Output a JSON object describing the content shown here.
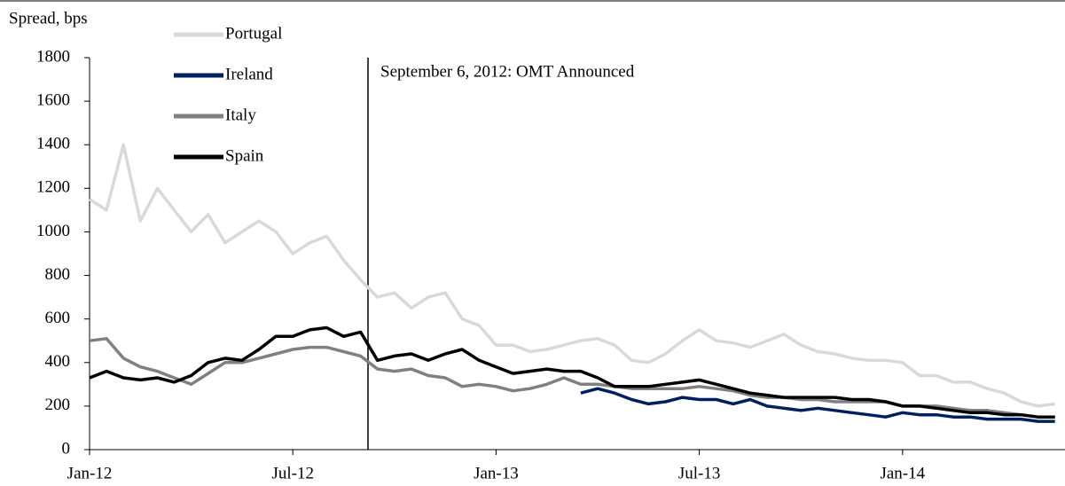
{
  "chart_data": {
    "type": "line",
    "y_axis_label": "Spread, bps",
    "annotation": "September 6, 2012: OMT Announced",
    "categories": [
      "Jan-12",
      null,
      null,
      null,
      null,
      null,
      null,
      null,
      null,
      null,
      null,
      null,
      "Jul-12",
      null,
      null,
      null,
      null,
      null,
      null,
      null,
      null,
      null,
      null,
      null,
      "Jan-13",
      null,
      null,
      null,
      null,
      null,
      null,
      null,
      null,
      null,
      null,
      null,
      "Jul-13",
      null,
      null,
      null,
      null,
      null,
      null,
      null,
      null,
      null,
      null,
      null,
      "Jan-14",
      null,
      null,
      null,
      null,
      null,
      null,
      null,
      null,
      null
    ],
    "series": [
      {
        "name": "Portugal",
        "color": "#d9d9d9",
        "values": [
          1150,
          1100,
          1400,
          1050,
          1200,
          1100,
          1000,
          1080,
          950,
          1000,
          1050,
          1000,
          900,
          950,
          980,
          870,
          780,
          700,
          720,
          650,
          700,
          720,
          600,
          570,
          480,
          480,
          450,
          460,
          480,
          500,
          510,
          480,
          410,
          400,
          440,
          500,
          550,
          500,
          490,
          470,
          500,
          530,
          480,
          450,
          440,
          420,
          410,
          410,
          400,
          340,
          340,
          310,
          310,
          280,
          260,
          220,
          200,
          210
        ]
      },
      {
        "name": "Ireland",
        "color": "#002060",
        "values": [
          null,
          null,
          null,
          null,
          null,
          null,
          null,
          null,
          null,
          null,
          null,
          null,
          null,
          null,
          null,
          null,
          null,
          null,
          null,
          null,
          null,
          null,
          null,
          null,
          null,
          null,
          null,
          null,
          null,
          260,
          280,
          260,
          230,
          210,
          220,
          240,
          230,
          230,
          210,
          230,
          200,
          190,
          180,
          190,
          180,
          170,
          160,
          150,
          170,
          160,
          160,
          150,
          150,
          140,
          140,
          140,
          130,
          130
        ]
      },
      {
        "name": "Italy",
        "color": "#808080",
        "values": [
          500,
          510,
          420,
          380,
          360,
          330,
          300,
          350,
          400,
          400,
          420,
          440,
          460,
          470,
          470,
          450,
          430,
          370,
          360,
          370,
          340,
          330,
          290,
          300,
          290,
          270,
          280,
          300,
          330,
          300,
          300,
          290,
          280,
          280,
          280,
          280,
          290,
          280,
          270,
          250,
          240,
          240,
          230,
          230,
          220,
          220,
          220,
          220,
          200,
          200,
          200,
          190,
          180,
          180,
          170,
          160,
          150,
          150
        ]
      },
      {
        "name": "Spain",
        "color": "#000000",
        "values": [
          330,
          360,
          330,
          320,
          330,
          310,
          340,
          400,
          420,
          410,
          460,
          520,
          520,
          550,
          560,
          520,
          540,
          410,
          430,
          440,
          410,
          440,
          460,
          410,
          380,
          350,
          360,
          370,
          360,
          360,
          330,
          290,
          290,
          290,
          300,
          310,
          320,
          300,
          280,
          260,
          250,
          240,
          240,
          240,
          240,
          230,
          230,
          220,
          200,
          200,
          190,
          180,
          170,
          170,
          160,
          160,
          150,
          150
        ]
      }
    ],
    "ylim": [
      0,
      1800
    ],
    "yticks": [
      0,
      200,
      400,
      600,
      800,
      1000,
      1200,
      1400,
      1600,
      1800
    ]
  }
}
